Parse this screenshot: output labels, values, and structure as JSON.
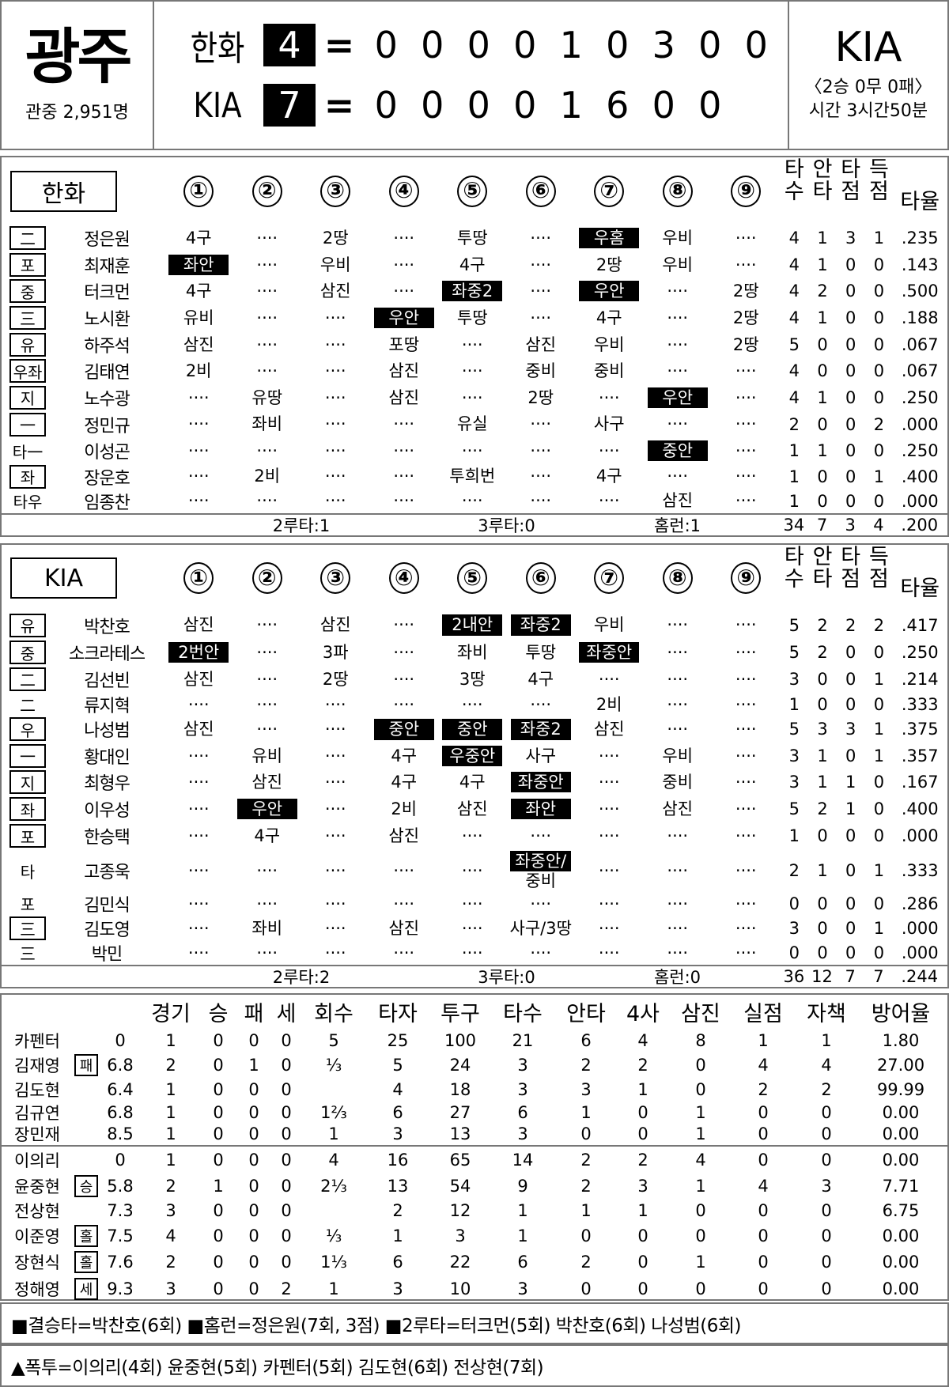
{
  "scoreboard": {
    "venue": "광주",
    "attendance": "관중 2,951명",
    "equals": "=",
    "away": {
      "name": "한화",
      "runs": "4",
      "innings": [
        "0",
        "0",
        "0",
        "0",
        "1",
        "0",
        "3",
        "0",
        "0"
      ]
    },
    "home": {
      "name": "KIA",
      "runs": "7",
      "innings": [
        "0",
        "0",
        "0",
        "0",
        "1",
        "6",
        "0",
        "0"
      ]
    },
    "winner": "KIA",
    "series": "〈2승 0무 0패〉",
    "duration": "시간 3시간50분"
  },
  "batting": {
    "inning_headers": [
      "①",
      "②",
      "③",
      "④",
      "⑤",
      "⑥",
      "⑦",
      "⑧",
      "⑨"
    ],
    "stat_headers": [
      [
        "타",
        "수"
      ],
      [
        "안",
        "타"
      ],
      [
        "타",
        "점"
      ],
      [
        "득",
        "점"
      ]
    ],
    "avg_header": "타율",
    "teams": [
      {
        "name": "한화",
        "rows": [
          {
            "pos": "二",
            "boxed": true,
            "name": "정은원",
            "innings": [
              "4구",
              "····",
              "2땅",
              "····",
              "투땅",
              "····",
              "우홈",
              "우비",
              "····"
            ],
            "hits": [
              6
            ],
            "stats": [
              "4",
              "1",
              "3",
              "1"
            ],
            "avg": ".235"
          },
          {
            "pos": "포",
            "boxed": true,
            "name": "최재훈",
            "innings": [
              "좌안",
              "····",
              "우비",
              "····",
              "4구",
              "····",
              "2땅",
              "우비",
              "····"
            ],
            "hits": [
              0
            ],
            "stats": [
              "4",
              "1",
              "0",
              "0"
            ],
            "avg": ".143"
          },
          {
            "pos": "중",
            "boxed": true,
            "name": "터크먼",
            "innings": [
              "4구",
              "····",
              "삼진",
              "····",
              "좌중2",
              "····",
              "우안",
              "····",
              "2땅"
            ],
            "hits": [
              4,
              6
            ],
            "stats": [
              "4",
              "2",
              "0",
              "0"
            ],
            "avg": ".500"
          },
          {
            "pos": "三",
            "boxed": true,
            "name": "노시환",
            "innings": [
              "유비",
              "····",
              "····",
              "우안",
              "투땅",
              "····",
              "4구",
              "····",
              "2땅"
            ],
            "hits": [
              3
            ],
            "stats": [
              "4",
              "1",
              "0",
              "0"
            ],
            "avg": ".188"
          },
          {
            "pos": "유",
            "boxed": true,
            "name": "하주석",
            "innings": [
              "삼진",
              "····",
              "····",
              "포땅",
              "····",
              "삼진",
              "우비",
              "····",
              "2땅"
            ],
            "hits": [],
            "stats": [
              "5",
              "0",
              "0",
              "0"
            ],
            "avg": ".067"
          },
          {
            "pos": "우좌",
            "boxed": true,
            "name": "김태연",
            "innings": [
              "2비",
              "····",
              "····",
              "삼진",
              "····",
              "중비",
              "중비",
              "····",
              "····"
            ],
            "hits": [],
            "stats": [
              "4",
              "0",
              "0",
              "0"
            ],
            "avg": ".067"
          },
          {
            "pos": "지",
            "boxed": true,
            "name": "노수광",
            "innings": [
              "····",
              "유땅",
              "····",
              "삼진",
              "····",
              "2땅",
              "····",
              "우안",
              "····"
            ],
            "hits": [
              7
            ],
            "stats": [
              "4",
              "1",
              "0",
              "0"
            ],
            "avg": ".250"
          },
          {
            "pos": "一",
            "boxed": true,
            "name": "정민규",
            "innings": [
              "····",
              "좌비",
              "····",
              "····",
              "유실",
              "····",
              "사구",
              "····",
              "····"
            ],
            "hits": [],
            "stats": [
              "2",
              "0",
              "0",
              "2"
            ],
            "avg": ".000"
          },
          {
            "pos": "타一",
            "boxed": false,
            "name": "이성곤",
            "innings": [
              "····",
              "····",
              "····",
              "····",
              "····",
              "····",
              "····",
              "중안",
              "····"
            ],
            "hits": [
              7
            ],
            "stats": [
              "1",
              "1",
              "0",
              "0"
            ],
            "avg": ".250"
          },
          {
            "pos": "좌",
            "boxed": true,
            "name": "장운호",
            "innings": [
              "····",
              "2비",
              "····",
              "····",
              "투희번",
              "····",
              "4구",
              "····",
              "····"
            ],
            "hits": [],
            "stats": [
              "1",
              "0",
              "0",
              "1"
            ],
            "avg": ".400"
          },
          {
            "pos": "타우",
            "boxed": false,
            "name": "임종찬",
            "innings": [
              "····",
              "····",
              "····",
              "····",
              "····",
              "····",
              "····",
              "삼진",
              "····"
            ],
            "hits": [],
            "stats": [
              "1",
              "0",
              "0",
              "0"
            ],
            "avg": ".000"
          }
        ],
        "totals": {
          "doubles": "2루타:1",
          "triples": "3루타:0",
          "homeruns": "홈런:1",
          "stats": [
            "34",
            "7",
            "3",
            "4"
          ],
          "avg": ".200"
        }
      },
      {
        "name": "KIA",
        "rows": [
          {
            "pos": "유",
            "boxed": true,
            "name": "박찬호",
            "innings": [
              "삼진",
              "····",
              "삼진",
              "····",
              "2내안",
              "좌중2",
              "우비",
              "····",
              "····"
            ],
            "hits": [
              4,
              5
            ],
            "stats": [
              "5",
              "2",
              "2",
              "2"
            ],
            "avg": ".417"
          },
          {
            "pos": "중",
            "boxed": true,
            "name": "소크라테스",
            "innings": [
              "2번안",
              "····",
              "3파",
              "····",
              "좌비",
              "투땅",
              "좌중안",
              "····",
              "····"
            ],
            "hits": [
              0,
              6
            ],
            "stats": [
              "5",
              "2",
              "0",
              "0"
            ],
            "avg": ".250"
          },
          {
            "pos": "二",
            "boxed": true,
            "name": "김선빈",
            "innings": [
              "삼진",
              "····",
              "2땅",
              "····",
              "3땅",
              "4구",
              "····",
              "····",
              "····"
            ],
            "hits": [],
            "stats": [
              "3",
              "0",
              "0",
              "1"
            ],
            "avg": ".214"
          },
          {
            "pos": "二",
            "boxed": false,
            "name": "류지혁",
            "innings": [
              "····",
              "····",
              "····",
              "····",
              "····",
              "····",
              "2비",
              "····",
              "····"
            ],
            "hits": [],
            "stats": [
              "1",
              "0",
              "0",
              "0"
            ],
            "avg": ".333"
          },
          {
            "pos": "우",
            "boxed": true,
            "name": "나성범",
            "innings": [
              "삼진",
              "····",
              "····",
              "중안",
              "중안",
              "좌중2",
              "삼진",
              "····",
              "····"
            ],
            "hits": [
              3,
              4,
              5
            ],
            "stats": [
              "5",
              "3",
              "3",
              "1"
            ],
            "avg": ".375"
          },
          {
            "pos": "一",
            "boxed": true,
            "name": "황대인",
            "innings": [
              "····",
              "유비",
              "····",
              "4구",
              "우중안",
              "사구",
              "····",
              "우비",
              "····"
            ],
            "hits": [
              4
            ],
            "stats": [
              "3",
              "1",
              "0",
              "1"
            ],
            "avg": ".357"
          },
          {
            "pos": "지",
            "boxed": true,
            "name": "최형우",
            "innings": [
              "····",
              "삼진",
              "····",
              "4구",
              "4구",
              "좌중안",
              "····",
              "중비",
              "····"
            ],
            "hits": [
              5
            ],
            "stats": [
              "3",
              "1",
              "1",
              "0"
            ],
            "avg": ".167"
          },
          {
            "pos": "좌",
            "boxed": true,
            "name": "이우성",
            "innings": [
              "····",
              "우안",
              "····",
              "2비",
              "삼진",
              "좌안",
              "····",
              "삼진",
              "····"
            ],
            "hits": [
              1,
              5
            ],
            "stats": [
              "5",
              "2",
              "1",
              "0"
            ],
            "avg": ".400"
          },
          {
            "pos": "포",
            "boxed": true,
            "name": "한승택",
            "innings": [
              "····",
              "4구",
              "····",
              "삼진",
              "····",
              "····",
              "····",
              "····",
              "····"
            ],
            "hits": [],
            "stats": [
              "1",
              "0",
              "0",
              "0"
            ],
            "avg": ".000"
          },
          {
            "pos": "타",
            "boxed": false,
            "name": "고종욱",
            "innings": [
              "····",
              "····",
              "····",
              "····",
              "····",
              "좌중안/",
              "····",
              "····",
              "····"
            ],
            "hits": [
              5
            ],
            "sub": {
              "5": "중비"
            },
            "stats": [
              "2",
              "1",
              "0",
              "1"
            ],
            "avg": ".333"
          },
          {
            "pos": "포",
            "boxed": false,
            "name": "김민식",
            "innings": [
              "····",
              "····",
              "····",
              "····",
              "····",
              "····",
              "····",
              "····",
              "····"
            ],
            "hits": [],
            "stats": [
              "0",
              "0",
              "0",
              "0"
            ],
            "avg": ".286"
          },
          {
            "pos": "三",
            "boxed": true,
            "name": "김도영",
            "innings": [
              "····",
              "좌비",
              "····",
              "삼진",
              "····",
              "사구/3땅",
              "····",
              "····",
              "····"
            ],
            "hits": [],
            "stats": [
              "3",
              "0",
              "0",
              "1"
            ],
            "avg": ".000"
          },
          {
            "pos": "三",
            "boxed": false,
            "name": "박민",
            "innings": [
              "····",
              "····",
              "····",
              "····",
              "····",
              "····",
              "····",
              "····",
              "····"
            ],
            "hits": [],
            "stats": [
              "0",
              "0",
              "0",
              "0"
            ],
            "avg": ".000"
          }
        ],
        "totals": {
          "doubles": "2루타:2",
          "triples": "3루타:0",
          "homeruns": "홈런:0",
          "stats": [
            "36",
            "12",
            "7",
            "7"
          ],
          "avg": ".244"
        }
      }
    ]
  },
  "pitching": {
    "headers": [
      "경기",
      "승",
      "패",
      "세",
      "회수",
      "타자",
      "투구",
      "타수",
      "안타",
      "4사",
      "삼진",
      "실점",
      "자책",
      "방어율"
    ],
    "groups": [
      [
        {
          "name": "카펜터",
          "badge": "",
          "entry": "0",
          "values": [
            "1",
            "0",
            "0",
            "0",
            "5",
            "25",
            "100",
            "21",
            "6",
            "4",
            "8",
            "1",
            "1",
            "1.80"
          ]
        },
        {
          "name": "김재영",
          "badge": "패",
          "entry": "6.8",
          "values": [
            "2",
            "0",
            "1",
            "0",
            "⅓",
            "5",
            "24",
            "3",
            "2",
            "2",
            "0",
            "4",
            "4",
            "27.00"
          ]
        },
        {
          "name": "김도현",
          "badge": "",
          "entry": "6.4",
          "values": [
            "1",
            "0",
            "0",
            "0",
            "",
            "4",
            "18",
            "3",
            "3",
            "1",
            "0",
            "2",
            "2",
            "99.99"
          ]
        },
        {
          "name": "김규연",
          "badge": "",
          "entry": "6.8",
          "values": [
            "1",
            "0",
            "0",
            "0",
            "1⅔",
            "6",
            "27",
            "6",
            "1",
            "0",
            "1",
            "0",
            "0",
            "0.00"
          ]
        },
        {
          "name": "장민재",
          "badge": "",
          "entry": "8.5",
          "values": [
            "1",
            "0",
            "0",
            "0",
            "1",
            "3",
            "13",
            "3",
            "0",
            "0",
            "1",
            "0",
            "0",
            "0.00"
          ]
        }
      ],
      [
        {
          "name": "이의리",
          "badge": "",
          "entry": "0",
          "values": [
            "1",
            "0",
            "0",
            "0",
            "4",
            "16",
            "65",
            "14",
            "2",
            "2",
            "4",
            "0",
            "0",
            "0.00"
          ]
        },
        {
          "name": "윤중현",
          "badge": "승",
          "entry": "5.8",
          "values": [
            "2",
            "1",
            "0",
            "0",
            "2⅓",
            "13",
            "54",
            "9",
            "2",
            "3",
            "1",
            "4",
            "3",
            "7.71"
          ]
        },
        {
          "name": "전상현",
          "badge": "",
          "entry": "7.3",
          "values": [
            "3",
            "0",
            "0",
            "0",
            "",
            "2",
            "12",
            "1",
            "1",
            "1",
            "0",
            "0",
            "0",
            "6.75"
          ]
        },
        {
          "name": "이준영",
          "badge": "홀",
          "entry": "7.5",
          "values": [
            "4",
            "0",
            "0",
            "0",
            "⅓",
            "1",
            "3",
            "1",
            "0",
            "0",
            "0",
            "0",
            "0",
            "0.00"
          ]
        },
        {
          "name": "장현식",
          "badge": "홀",
          "entry": "7.6",
          "values": [
            "2",
            "0",
            "0",
            "0",
            "1⅓",
            "6",
            "22",
            "6",
            "2",
            "0",
            "1",
            "0",
            "0",
            "0.00"
          ]
        },
        {
          "name": "정해영",
          "badge": "세",
          "entry": "9.3",
          "values": [
            "3",
            "0",
            "0",
            "2",
            "1",
            "3",
            "10",
            "3",
            "0",
            "0",
            "0",
            "0",
            "0",
            "0.00"
          ]
        }
      ]
    ]
  },
  "notes": [
    "■결승타=박찬호(6회) ■홈런=정은원(7회, 3점) ■2루타=터크먼(5회) 박찬호(6회) 나성범(6회)",
    "▲폭투=이의리(4회) 윤중현(5회) 카펜터(5회) 김도현(6회) 전상현(7회)"
  ]
}
